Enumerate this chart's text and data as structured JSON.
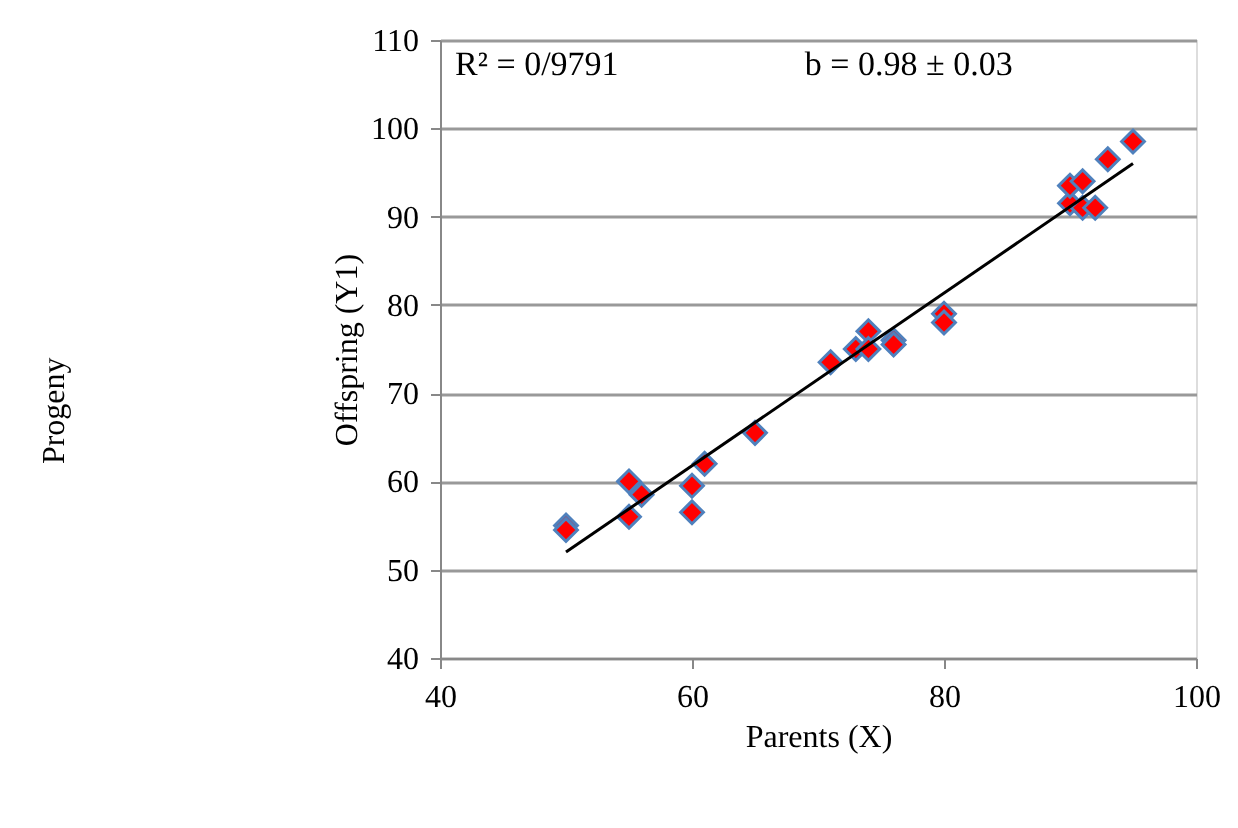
{
  "chart_data": {
    "type": "scatter",
    "xlabel": "Parents (X)",
    "ylabel": "Offspring (Y1)",
    "annotations": [
      "R² = 0/9791",
      "b =  0.98 ± 0.03",
      "Progeny"
    ],
    "series": [
      {
        "type": "scatter",
        "color": "#ff0000",
        "marker": "diamond",
        "x": [
          50,
          50,
          55,
          55,
          56,
          60,
          60,
          61,
          65,
          71,
          73,
          74,
          74,
          76,
          76,
          80,
          80,
          90,
          90,
          91,
          91,
          92,
          93,
          95
        ],
        "values": [
          55,
          54.5,
          60,
          56,
          58.5,
          59.5,
          56.5,
          62,
          65.5,
          73.5,
          75,
          77,
          75,
          76,
          75.5,
          79,
          78,
          91.5,
          93.5,
          94,
          91,
          91,
          96.5,
          98.5
        ]
      },
      {
        "type": "line",
        "color": "#000000",
        "x": [
          50,
          95
        ],
        "values": [
          52,
          96
        ]
      }
    ],
    "xlim": [
      40,
      100
    ],
    "xticks": [
      40,
      60,
      80,
      100
    ],
    "ylim": [
      40,
      110
    ],
    "yticks": [
      40,
      50,
      60,
      70,
      80,
      90,
      100,
      110
    ],
    "grid": "y"
  }
}
